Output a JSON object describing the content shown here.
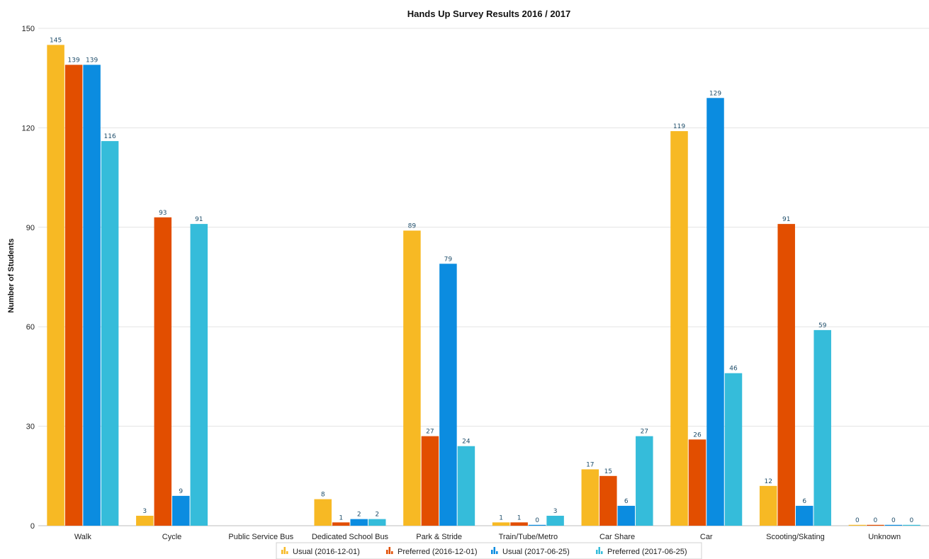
{
  "chart_data": {
    "type": "bar",
    "title": "Hands Up Survey Results 2016 / 2017",
    "xlabel": "",
    "ylabel": "Number of Students",
    "ylim": [
      0,
      150
    ],
    "yticks": [
      0,
      30,
      60,
      90,
      120,
      150
    ],
    "grid": true,
    "legend_position": "bottom",
    "categories": [
      "Walk",
      "Cycle",
      "Public Service Bus",
      "Dedicated School Bus",
      "Park & Stride",
      "Train/Tube/Metro",
      "Car Share",
      "Car",
      "Scooting/Skating",
      "Unknown"
    ],
    "series": [
      {
        "name": "Usual (2016-12-01)",
        "color": "#f7b924",
        "values": [
          145,
          3,
          null,
          8,
          89,
          1,
          17,
          119,
          12,
          0
        ]
      },
      {
        "name": "Preferred (2016-12-01)",
        "color": "#e24e00",
        "values": [
          139,
          93,
          null,
          1,
          27,
          1,
          15,
          26,
          91,
          0
        ]
      },
      {
        "name": "Usual (2017-06-25)",
        "color": "#0b8ce0",
        "values": [
          139,
          9,
          null,
          2,
          79,
          0,
          6,
          129,
          6,
          0
        ]
      },
      {
        "name": "Preferred (2017-06-25)",
        "color": "#35bcda",
        "values": [
          116,
          91,
          null,
          2,
          24,
          3,
          27,
          46,
          59,
          0
        ]
      }
    ],
    "legend_icon": "bar-chart-icon"
  }
}
